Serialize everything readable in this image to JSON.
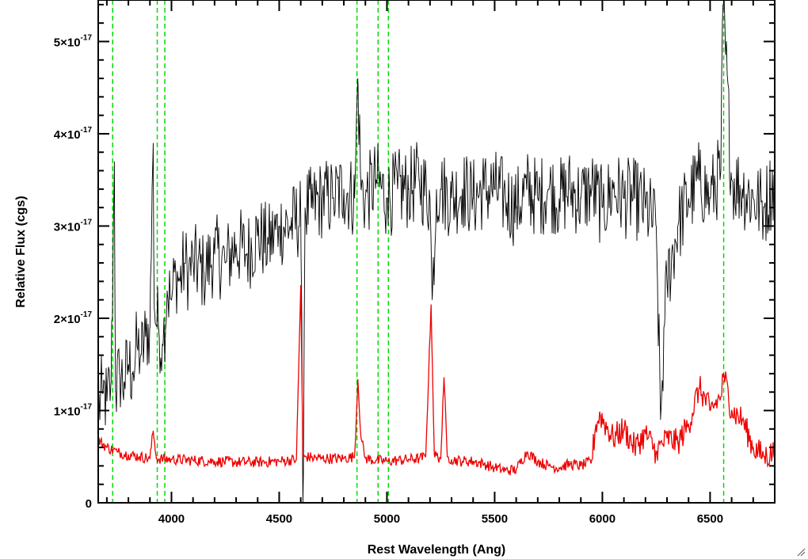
{
  "chart_data": {
    "type": "line",
    "title": "",
    "xlabel": "Rest Wavelength (Ang)",
    "ylabel": "Relative Flux (cgs)",
    "xlim": [
      3660,
      6800
    ],
    "ylim": [
      0,
      5.45e-17
    ],
    "x_ticks": [
      {
        "value": 4000,
        "label": "4000"
      },
      {
        "value": 4500,
        "label": "4500"
      },
      {
        "value": 5000,
        "label": "5000"
      },
      {
        "value": 5500,
        "label": "5500"
      },
      {
        "value": 6000,
        "label": "6000"
      },
      {
        "value": 6500,
        "label": "6500"
      }
    ],
    "y_ticks": [
      {
        "value": 0,
        "mantissa": "0",
        "exponent": ""
      },
      {
        "value": 1e-17,
        "mantissa": "1×10",
        "exponent": "-17"
      },
      {
        "value": 2e-17,
        "mantissa": "2×10",
        "exponent": "-17"
      },
      {
        "value": 3e-17,
        "mantissa": "3×10",
        "exponent": "-17"
      },
      {
        "value": 4e-17,
        "mantissa": "4×10",
        "exponent": "-17"
      },
      {
        "value": 5e-17,
        "mantissa": "5×10",
        "exponent": "-17"
      }
    ],
    "grid": false,
    "vertical_lines": {
      "color": "#00dd00",
      "style": "dashed",
      "x": [
        3727,
        3934,
        3969,
        4861,
        4959,
        5007,
        6563
      ]
    },
    "series": [
      {
        "color": "#000000",
        "x": [
          3660,
          3680,
          3700,
          3720,
          3735,
          3740,
          3760,
          3780,
          3800,
          3820,
          3840,
          3860,
          3880,
          3900,
          3915,
          3920,
          3940,
          3960,
          3980,
          4000,
          4020,
          4040,
          4060,
          4080,
          4100,
          4150,
          4200,
          4250,
          4300,
          4350,
          4400,
          4450,
          4500,
          4550,
          4600,
          4610,
          4620,
          4650,
          4700,
          4750,
          4800,
          4850,
          4865,
          4880,
          4900,
          4950,
          5000,
          5050,
          5100,
          5150,
          5200,
          5210,
          5230,
          5250,
          5300,
          5350,
          5400,
          5450,
          5500,
          5550,
          5600,
          5650,
          5700,
          5750,
          5800,
          5850,
          5900,
          5950,
          6000,
          6050,
          6100,
          6150,
          6200,
          6250,
          6270,
          6290,
          6300,
          6350,
          6400,
          6450,
          6500,
          6550,
          6560,
          6600,
          6650,
          6700,
          6750,
          6800
        ],
        "y": [
          1e-17,
          1.2e-17,
          1.1e-17,
          1.3e-17,
          3.7e-17,
          1.2e-17,
          1.4e-17,
          1.3e-17,
          1.5e-17,
          1.4e-17,
          1.7e-17,
          1.6e-17,
          1.8e-17,
          1.9e-17,
          3.9e-17,
          2.1e-17,
          1.9e-17,
          1.7e-17,
          2.3e-17,
          2.2e-17,
          2.5e-17,
          2.4e-17,
          2.6e-17,
          2.5e-17,
          2.6e-17,
          2.5e-17,
          2.7e-17,
          2.6e-17,
          2.8e-17,
          2.7e-17,
          2.9e-17,
          2.8e-17,
          3e-17,
          3e-17,
          3.1e-17,
          0.0,
          3.2e-17,
          3.2e-17,
          3.3e-17,
          3.3e-17,
          3.4e-17,
          3.3e-17,
          4.6e-17,
          3.4e-17,
          3.3e-17,
          3.5e-17,
          3.3e-17,
          3.4e-17,
          3.4e-17,
          3.5e-17,
          3.3e-17,
          2.2e-17,
          3.4e-17,
          3.4e-17,
          3.3e-17,
          3.4e-17,
          3.3e-17,
          3.4e-17,
          3.4e-17,
          3.3e-17,
          3.2e-17,
          3.4e-17,
          3.3e-17,
          3.4e-17,
          3.3e-17,
          3.4e-17,
          3.3e-17,
          3.4e-17,
          3.2e-17,
          3.4e-17,
          3.3e-17,
          3.3e-17,
          3.2e-17,
          3e-17,
          9e-18,
          2e-17,
          2.4e-17,
          3e-17,
          3.3e-17,
          3.5e-17,
          3.3e-17,
          3.6e-17,
          5.4e-17,
          3.5e-17,
          3.4e-17,
          3.3e-17,
          3.2e-17,
          3.5e-17
        ]
      },
      {
        "color": "#ee0000",
        "x": [
          3660,
          3700,
          3750,
          3800,
          3850,
          3900,
          3915,
          3930,
          4000,
          4100,
          4200,
          4300,
          4400,
          4500,
          4580,
          4600,
          4610,
          4620,
          4650,
          4700,
          4800,
          4850,
          4865,
          4880,
          4900,
          4950,
          5000,
          5050,
          5100,
          5150,
          5180,
          5205,
          5220,
          5250,
          5265,
          5280,
          5300,
          5350,
          5400,
          5450,
          5500,
          5550,
          5600,
          5650,
          5700,
          5750,
          5800,
          5850,
          5900,
          5950,
          5970,
          5990,
          6050,
          6100,
          6150,
          6200,
          6250,
          6300,
          6350,
          6400,
          6450,
          6500,
          6550,
          6563,
          6600,
          6650,
          6700,
          6750,
          6800
        ],
        "y": [
          6.8e-18,
          6e-18,
          5.5e-18,
          5.2e-18,
          5e-18,
          4.8e-18,
          7.8e-18,
          4.8e-18,
          4.7e-18,
          4.6e-18,
          4.5e-18,
          4.4e-18,
          4.4e-18,
          4.5e-18,
          4.7e-18,
          2.36e-17,
          5e-18,
          5e-18,
          4.9e-18,
          4.8e-18,
          4.8e-18,
          5e-18,
          1.34e-17,
          7e-18,
          4.8e-18,
          4.6e-18,
          4.5e-18,
          4.6e-18,
          4.7e-18,
          4.8e-18,
          5e-18,
          2.15e-17,
          5.2e-18,
          4.8e-18,
          1.36e-17,
          5e-18,
          4.7e-18,
          4.5e-18,
          4.5e-18,
          4.2e-18,
          3.8e-18,
          3.5e-18,
          3.6e-18,
          5.5e-18,
          4.5e-18,
          4e-18,
          3.8e-18,
          4.2e-18,
          4e-18,
          4.5e-18,
          8.5e-18,
          9.5e-18,
          7e-18,
          8e-18,
          6e-18,
          7.5e-18,
          5.5e-18,
          7e-18,
          6.5e-18,
          8.5e-18,
          1.25e-17,
          1e-17,
          1.15e-17,
          1.4e-17,
          1e-17,
          9e-18,
          6e-18,
          5e-18,
          5.5e-18
        ]
      }
    ]
  }
}
